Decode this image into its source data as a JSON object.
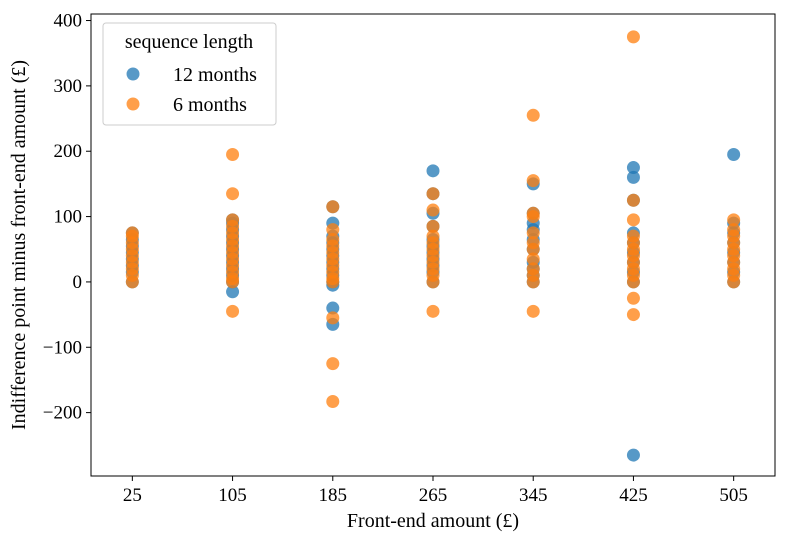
{
  "chart_data": {
    "type": "scatter",
    "xlabel": "Front-end amount (£)",
    "ylabel": "Indifference point minus front-end amount (£)",
    "xticks": [
      25,
      105,
      185,
      265,
      345,
      425,
      505
    ],
    "yticks": [
      -200,
      -100,
      0,
      100,
      200,
      300,
      400
    ],
    "xlim": [
      -8,
      538
    ],
    "ylim": [
      -297,
      410
    ],
    "legend": {
      "title": "sequence length",
      "placement": "top-left"
    },
    "grid": false,
    "series": [
      {
        "name": "12 months",
        "color": "#1f77b4",
        "points": [
          [
            25,
            0
          ],
          [
            25,
            15
          ],
          [
            25,
            25
          ],
          [
            25,
            35
          ],
          [
            25,
            45
          ],
          [
            25,
            55
          ],
          [
            25,
            65
          ],
          [
            25,
            75
          ],
          [
            105,
            -15
          ],
          [
            105,
            0
          ],
          [
            105,
            10
          ],
          [
            105,
            20
          ],
          [
            105,
            30
          ],
          [
            105,
            40
          ],
          [
            105,
            50
          ],
          [
            105,
            60
          ],
          [
            105,
            70
          ],
          [
            105,
            80
          ],
          [
            105,
            90
          ],
          [
            105,
            95
          ],
          [
            185,
            -65
          ],
          [
            185,
            -40
          ],
          [
            185,
            -5
          ],
          [
            185,
            0
          ],
          [
            185,
            10
          ],
          [
            185,
            20
          ],
          [
            185,
            30
          ],
          [
            185,
            40
          ],
          [
            185,
            50
          ],
          [
            185,
            60
          ],
          [
            185,
            70
          ],
          [
            185,
            90
          ],
          [
            185,
            115
          ],
          [
            265,
            0
          ],
          [
            265,
            15
          ],
          [
            265,
            25
          ],
          [
            265,
            35
          ],
          [
            265,
            45
          ],
          [
            265,
            55
          ],
          [
            265,
            65
          ],
          [
            265,
            85
          ],
          [
            265,
            105
          ],
          [
            265,
            135
          ],
          [
            265,
            170
          ],
          [
            345,
            0
          ],
          [
            345,
            10
          ],
          [
            345,
            20
          ],
          [
            345,
            30
          ],
          [
            345,
            50
          ],
          [
            345,
            65
          ],
          [
            345,
            80
          ],
          [
            345,
            90
          ],
          [
            345,
            105
          ],
          [
            345,
            150
          ],
          [
            425,
            -265
          ],
          [
            425,
            0
          ],
          [
            425,
            15
          ],
          [
            425,
            30
          ],
          [
            425,
            45
          ],
          [
            425,
            60
          ],
          [
            425,
            75
          ],
          [
            425,
            125
          ],
          [
            425,
            160
          ],
          [
            425,
            175
          ],
          [
            505,
            0
          ],
          [
            505,
            15
          ],
          [
            505,
            30
          ],
          [
            505,
            45
          ],
          [
            505,
            60
          ],
          [
            505,
            75
          ],
          [
            505,
            90
          ],
          [
            505,
            195
          ]
        ]
      },
      {
        "name": "6 months",
        "color": "#ff7f0e",
        "points": [
          [
            25,
            0
          ],
          [
            25,
            10
          ],
          [
            25,
            20
          ],
          [
            25,
            30
          ],
          [
            25,
            40
          ],
          [
            25,
            50
          ],
          [
            25,
            60
          ],
          [
            25,
            70
          ],
          [
            25,
            75
          ],
          [
            105,
            -45
          ],
          [
            105,
            0
          ],
          [
            105,
            5
          ],
          [
            105,
            15
          ],
          [
            105,
            25
          ],
          [
            105,
            35
          ],
          [
            105,
            45
          ],
          [
            105,
            55
          ],
          [
            105,
            65
          ],
          [
            105,
            75
          ],
          [
            105,
            85
          ],
          [
            105,
            95
          ],
          [
            105,
            135
          ],
          [
            105,
            195
          ],
          [
            185,
            -183
          ],
          [
            185,
            -125
          ],
          [
            185,
            -55
          ],
          [
            185,
            0
          ],
          [
            185,
            5
          ],
          [
            185,
            15
          ],
          [
            185,
            25
          ],
          [
            185,
            35
          ],
          [
            185,
            45
          ],
          [
            185,
            55
          ],
          [
            185,
            65
          ],
          [
            185,
            80
          ],
          [
            185,
            115
          ],
          [
            265,
            -45
          ],
          [
            265,
            0
          ],
          [
            265,
            10
          ],
          [
            265,
            20
          ],
          [
            265,
            30
          ],
          [
            265,
            40
          ],
          [
            265,
            50
          ],
          [
            265,
            60
          ],
          [
            265,
            70
          ],
          [
            265,
            85
          ],
          [
            265,
            110
          ],
          [
            265,
            135
          ],
          [
            345,
            -45
          ],
          [
            345,
            0
          ],
          [
            345,
            10
          ],
          [
            345,
            20
          ],
          [
            345,
            35
          ],
          [
            345,
            50
          ],
          [
            345,
            60
          ],
          [
            345,
            75
          ],
          [
            345,
            100
          ],
          [
            345,
            105
          ],
          [
            345,
            155
          ],
          [
            345,
            255
          ],
          [
            425,
            -50
          ],
          [
            425,
            -25
          ],
          [
            425,
            0
          ],
          [
            425,
            10
          ],
          [
            425,
            20
          ],
          [
            425,
            30
          ],
          [
            425,
            40
          ],
          [
            425,
            50
          ],
          [
            425,
            60
          ],
          [
            425,
            70
          ],
          [
            425,
            95
          ],
          [
            425,
            125
          ],
          [
            425,
            375
          ],
          [
            505,
            0
          ],
          [
            505,
            10
          ],
          [
            505,
            20
          ],
          [
            505,
            30
          ],
          [
            505,
            40
          ],
          [
            505,
            50
          ],
          [
            505,
            60
          ],
          [
            505,
            70
          ],
          [
            505,
            80
          ],
          [
            505,
            95
          ]
        ]
      }
    ]
  }
}
